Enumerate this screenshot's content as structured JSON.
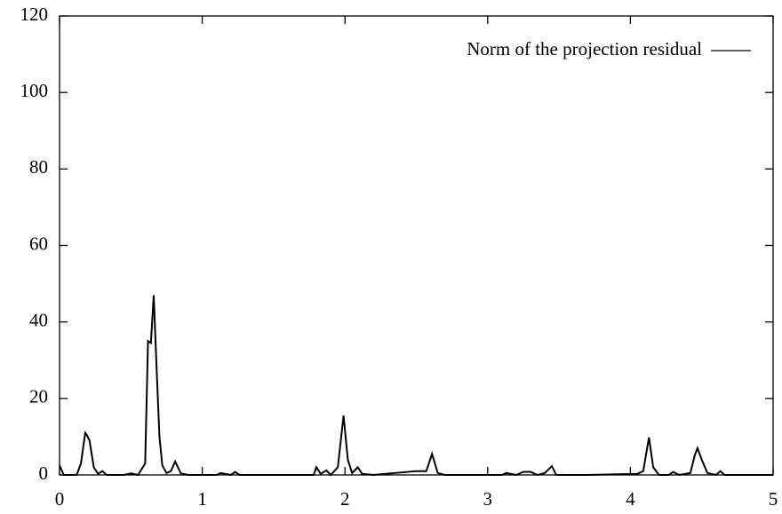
{
  "chart_data": {
    "type": "line",
    "x": [
      0,
      0.03,
      0.12,
      0.15,
      0.18,
      0.19,
      0.21,
      0.24,
      0.27,
      0.3,
      0.33,
      0.45,
      0.5,
      0.55,
      0.6,
      0.62,
      0.64,
      0.66,
      0.68,
      0.7,
      0.72,
      0.75,
      0.78,
      0.81,
      0.85,
      0.9,
      1.1,
      1.13,
      1.2,
      1.23,
      1.26,
      1.4,
      1.78,
      1.8,
      1.83,
      1.87,
      1.9,
      1.95,
      1.99,
      2.02,
      2.05,
      2.09,
      2.12,
      2.2,
      2.5,
      2.57,
      2.61,
      2.65,
      2.7,
      3.1,
      3.13,
      3.2,
      3.25,
      3.3,
      3.35,
      3.4,
      3.45,
      3.48,
      3.7,
      4.05,
      4.09,
      4.13,
      4.16,
      4.2,
      4.27,
      4.3,
      4.34,
      4.42,
      4.45,
      4.47,
      4.5,
      4.54,
      4.6,
      4.63,
      4.66,
      5
    ],
    "series": [
      {
        "name": "Norm of the projection residual",
        "color": "#000000",
        "values": [
          2.5,
          0,
          0,
          3,
          11,
          10.5,
          9,
          2,
          0.3,
          1,
          0,
          0,
          0.4,
          0,
          3,
          35,
          34.5,
          47,
          28,
          10,
          2.5,
          0.5,
          1,
          3.5,
          0.4,
          0,
          0,
          0.5,
          0,
          0.8,
          0,
          0,
          0,
          2,
          0.3,
          1.2,
          0,
          2,
          15.5,
          4,
          0.5,
          2,
          0.3,
          0,
          1,
          1,
          5.5,
          0.5,
          0,
          0,
          0.5,
          0,
          0.8,
          0.8,
          0,
          0.5,
          2.3,
          0,
          0,
          0.3,
          1,
          9.8,
          2,
          0,
          0,
          0.8,
          0,
          0.5,
          5,
          7,
          4,
          0.5,
          0,
          1,
          0,
          0
        ]
      }
    ],
    "xlim": [
      0,
      5
    ],
    "xticks": [
      0,
      1,
      2,
      3,
      4,
      5
    ],
    "ylim": [
      0,
      120
    ],
    "yticks": [
      0,
      20,
      40,
      60,
      80,
      100,
      120
    ],
    "legend": "top-right"
  }
}
